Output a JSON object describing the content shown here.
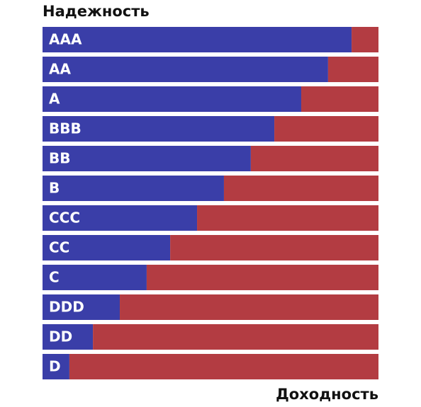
{
  "chart_data": {
    "type": "stacked-bar-horizontal",
    "categories": [
      "AAA",
      "AA",
      "A",
      "BBB",
      "BB",
      "B",
      "CCC",
      "CC",
      "C",
      "DDD",
      "DD",
      "D"
    ],
    "series": [
      {
        "name": "Надежность",
        "color": "#3a3ea8",
        "values": [
          92,
          85,
          77,
          69,
          62,
          54,
          46,
          38,
          31,
          23,
          15,
          8
        ]
      },
      {
        "name": "Доходность",
        "color": "#b33c42",
        "values": [
          8,
          15,
          23,
          31,
          38,
          46,
          54,
          62,
          69,
          77,
          85,
          92
        ]
      }
    ],
    "xlim": [
      0,
      100
    ]
  }
}
